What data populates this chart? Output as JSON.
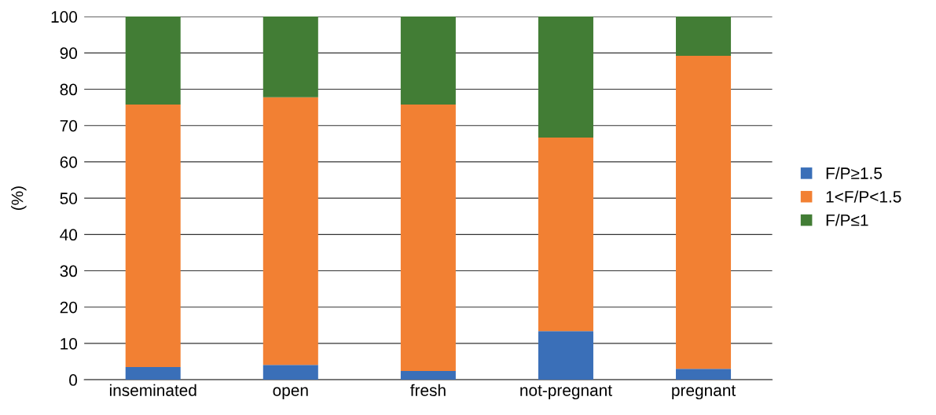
{
  "chart_data": {
    "type": "bar",
    "stacked": true,
    "ylabel": "(%)",
    "categories": [
      "inseminated",
      "open",
      "fresh",
      "not-pregnant",
      "pregnant"
    ],
    "series": [
      {
        "name": "F/P≥1.5",
        "color": "#3a6fb8",
        "values": [
          3.5,
          4.1,
          2.4,
          13.4,
          3.0
        ]
      },
      {
        "name": "1<F/P<1.5",
        "color": "#f28033",
        "values": [
          72.3,
          73.7,
          73.4,
          53.3,
          86.2
        ]
      },
      {
        "name": "F/P≤1",
        "color": "#427d35",
        "values": [
          24.2,
          22.2,
          24.2,
          33.3,
          10.8
        ]
      }
    ],
    "ylim": [
      0,
      100
    ],
    "yticks": [
      0,
      10,
      20,
      30,
      40,
      50,
      60,
      70,
      80,
      90,
      100
    ],
    "grid": "y",
    "legend": "right"
  }
}
